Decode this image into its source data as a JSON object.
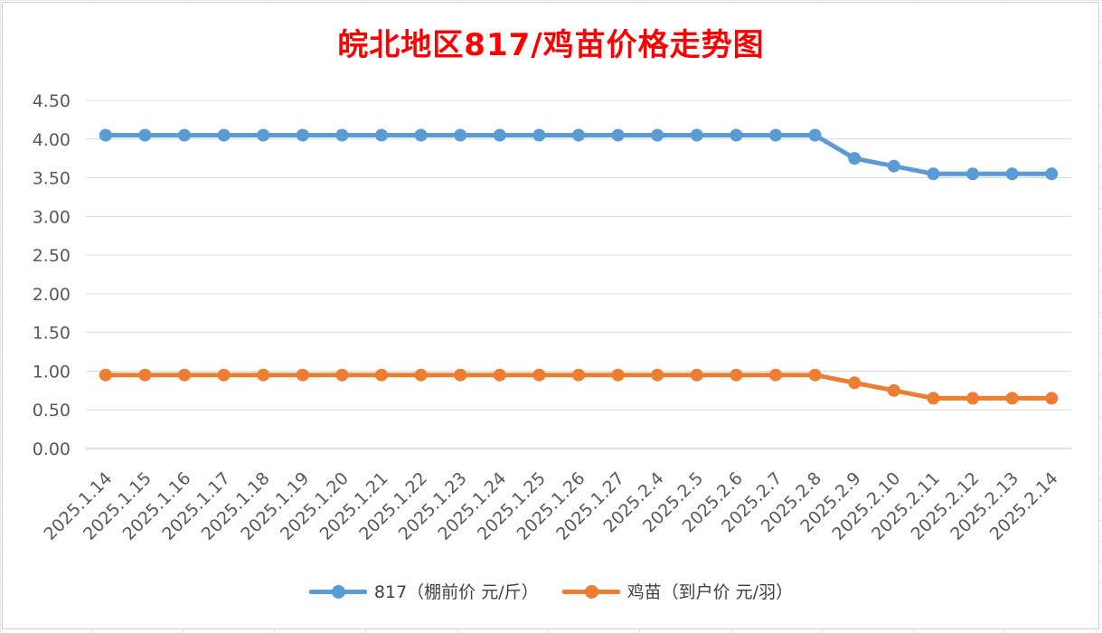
{
  "chart_data": {
    "type": "line",
    "title": "皖北地区817/鸡苗价格走势图",
    "categories": [
      "2025.1.14",
      "2025.1.15",
      "2025.1.16",
      "2025.1.17",
      "2025.1.18",
      "2025.1.19",
      "2025.1.20",
      "2025.1.21",
      "2025.1.22",
      "2025.1.23",
      "2025.1.24",
      "2025.1.25",
      "2025.1.26",
      "2025.1.27",
      "2025.2.4",
      "2025.2.5",
      "2025.2.6",
      "2025.2.7",
      "2025.2.8",
      "2025.2.9",
      "2025.2.10",
      "2025.2.11",
      "2025.2.12",
      "2025.2.13",
      "2025.2.14"
    ],
    "series": [
      {
        "name": "817（棚前价 元/斤）",
        "color": "#5b9bd5",
        "values": [
          4.05,
          4.05,
          4.05,
          4.05,
          4.05,
          4.05,
          4.05,
          4.05,
          4.05,
          4.05,
          4.05,
          4.05,
          4.05,
          4.05,
          4.05,
          4.05,
          4.05,
          4.05,
          4.05,
          3.75,
          3.65,
          3.55,
          3.55,
          3.55,
          3.55
        ]
      },
      {
        "name": "鸡苗（到户价 元/羽）",
        "color": "#ed7d31",
        "values": [
          0.95,
          0.95,
          0.95,
          0.95,
          0.95,
          0.95,
          0.95,
          0.95,
          0.95,
          0.95,
          0.95,
          0.95,
          0.95,
          0.95,
          0.95,
          0.95,
          0.95,
          0.95,
          0.95,
          0.85,
          0.75,
          0.65,
          0.65,
          0.65,
          0.65
        ]
      }
    ],
    "ylim": [
      0,
      4.5
    ],
    "yticks": [
      "0.00",
      "0.50",
      "1.00",
      "1.50",
      "2.00",
      "2.50",
      "3.00",
      "3.50",
      "4.00",
      "4.50"
    ],
    "grid": true,
    "legend": "bottom"
  }
}
